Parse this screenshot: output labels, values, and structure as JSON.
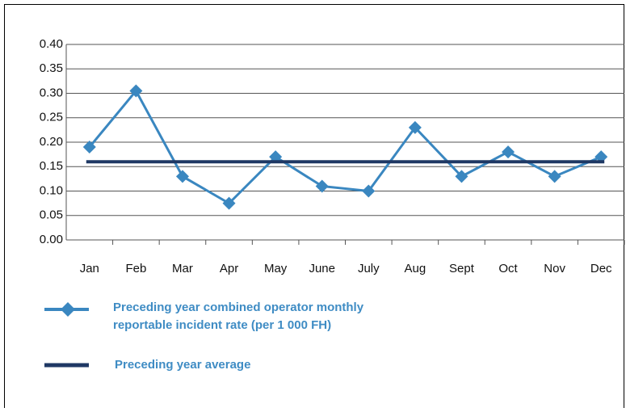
{
  "chart_data": {
    "type": "line",
    "categories": [
      "Jan",
      "Feb",
      "Mar",
      "Apr",
      "May",
      "June",
      "July",
      "Aug",
      "Sept",
      "Oct",
      "Nov",
      "Dec"
    ],
    "series": [
      {
        "name": "Preceding year combined operator monthly reportable incident rate (per 1 000 FH)",
        "color": "#3a87c0",
        "marker": "diamond",
        "values": [
          0.19,
          0.305,
          0.13,
          0.075,
          0.17,
          0.11,
          0.1,
          0.23,
          0.13,
          0.18,
          0.13,
          0.17
        ]
      },
      {
        "name": "Preceding year average",
        "color": "#1f3864",
        "values": [
          0.16,
          0.16,
          0.16,
          0.16,
          0.16,
          0.16,
          0.16,
          0.16,
          0.16,
          0.16,
          0.16,
          0.16
        ]
      }
    ],
    "ylim": [
      0,
      0.4
    ],
    "yticks": [
      {
        "value": 0,
        "label": "0.00"
      },
      {
        "value": 0.05,
        "label": "0.05"
      },
      {
        "value": 0.1,
        "label": "0.10"
      },
      {
        "value": 0.15,
        "label": "0.15"
      },
      {
        "value": 0.2,
        "label": "0.20"
      },
      {
        "value": 0.25,
        "label": "0.25"
      },
      {
        "value": 0.3,
        "label": "0.30"
      },
      {
        "value": 0.35,
        "label": "0.35"
      },
      {
        "value": 0.4,
        "label": "0.40"
      }
    ],
    "grid": true,
    "legend": "bottom"
  }
}
